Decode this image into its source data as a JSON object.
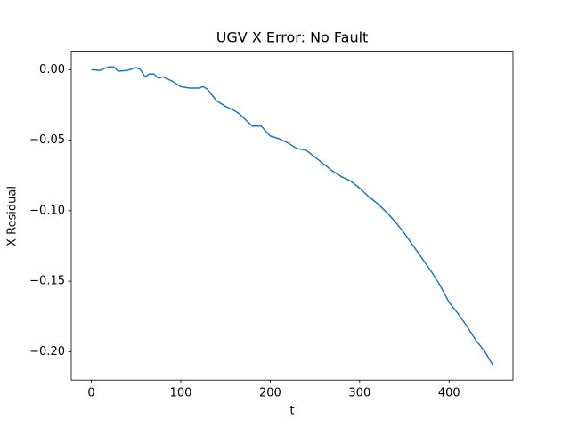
{
  "chart_data": {
    "type": "line",
    "title": "UGV X Error: No Fault",
    "xlabel": "t",
    "ylabel": "X Residual",
    "x": [
      0,
      10,
      15,
      20,
      25,
      30,
      40,
      50,
      55,
      60,
      65,
      70,
      75,
      80,
      90,
      100,
      110,
      120,
      125,
      130,
      140,
      150,
      160,
      165,
      175,
      180,
      190,
      200,
      210,
      220,
      230,
      240,
      250,
      260,
      270,
      280,
      290,
      300,
      310,
      320,
      330,
      340,
      350,
      360,
      370,
      380,
      390,
      400,
      410,
      420,
      430,
      440,
      449
    ],
    "values": [
      0.0,
      -0.0005,
      0.001,
      0.002,
      0.002,
      -0.001,
      -0.0005,
      0.0015,
      0.0,
      -0.005,
      -0.003,
      -0.003,
      -0.006,
      -0.005,
      -0.008,
      -0.012,
      -0.013,
      -0.013,
      -0.012,
      -0.014,
      -0.022,
      -0.026,
      -0.029,
      -0.031,
      -0.037,
      -0.04,
      -0.04,
      -0.047,
      -0.049,
      -0.052,
      -0.056,
      -0.057,
      -0.062,
      -0.067,
      -0.072,
      -0.076,
      -0.079,
      -0.084,
      -0.09,
      -0.095,
      -0.101,
      -0.108,
      -0.116,
      -0.125,
      -0.134,
      -0.143,
      -0.153,
      -0.165,
      -0.173,
      -0.182,
      -0.192,
      -0.2,
      -0.2095
    ],
    "color": "#1f77b4",
    "xlim": [
      -22.45,
      471.45
    ],
    "xticks": [
      0,
      100,
      200,
      300,
      400
    ],
    "ylim": [
      -0.2201,
      0.0131
    ],
    "yticks": [
      {
        "value": 0,
        "label": "0.00"
      },
      {
        "value": -0.05,
        "label": "−0.05"
      },
      {
        "value": -0.1,
        "label": "−0.10"
      },
      {
        "value": -0.15,
        "label": "−0.15"
      },
      {
        "value": -0.2,
        "label": "−0.20"
      }
    ],
    "grid": false
  }
}
